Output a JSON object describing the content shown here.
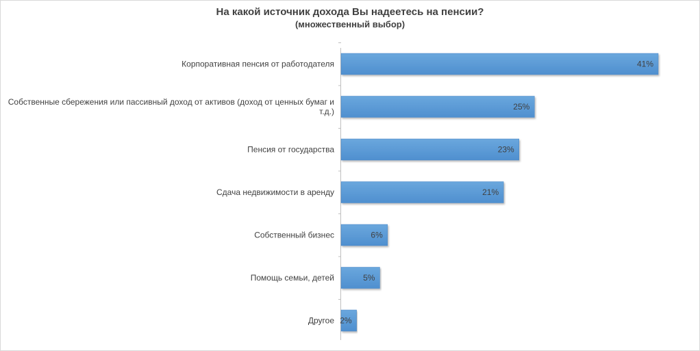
{
  "chart_data": {
    "type": "bar",
    "orientation": "horizontal",
    "title": "На какой источник дохода Вы надеетесь на пенсии?",
    "subtitle": "(множественный выбор)",
    "categories": [
      "Корпоративная пенсия от работодателя",
      "Собственные сбережения или пассивный доход от активов (доход от ценных бумаг и т.д.)",
      "Пенсия от государства",
      "Сдача недвижимости в аренду",
      "Собственный бизнес",
      "Помощь семьи, детей",
      "Другое"
    ],
    "category_lines": [
      [
        "Корпоративная пенсия от работодателя"
      ],
      [
        "Собственные сбережения или пассивный доход от активов (доход от ценных бумаг и",
        "т.д.)"
      ],
      [
        "Пенсия от государства"
      ],
      [
        "Сдача недвижимости в аренду"
      ],
      [
        "Собственный бизнес"
      ],
      [
        "Помощь семьи, детей"
      ],
      [
        "Другое"
      ]
    ],
    "values": [
      41,
      25,
      23,
      21,
      6,
      5,
      2
    ],
    "data_labels": [
      "41%",
      "25%",
      "23%",
      "21%",
      "6%",
      "5%",
      "2%"
    ],
    "unit": "%",
    "xlim": [
      0,
      41
    ],
    "bar_color": "#5b9bd5",
    "grid": false,
    "legend": "none"
  }
}
